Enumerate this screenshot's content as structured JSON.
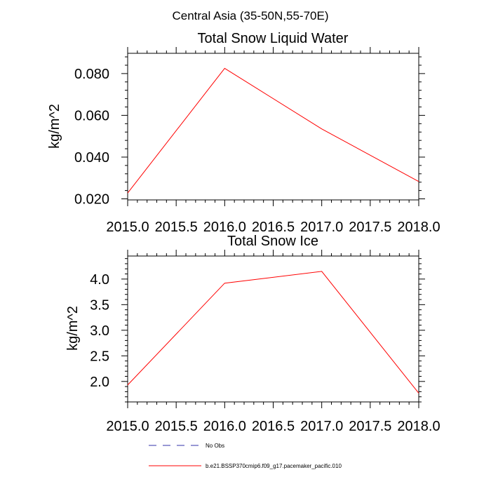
{
  "figure": {
    "suptitle": "Central Asia (35-50N,55-70E)"
  },
  "chart_data": [
    {
      "type": "line",
      "title": "Total Snow Liquid Water",
      "xlabel": "",
      "ylabel": "kg/m^2",
      "xlim": [
        2015.0,
        2018.0
      ],
      "ylim": [
        0.0195,
        0.0897
      ],
      "x_ticks": [
        "2015.0",
        "2015.5",
        "2016.0",
        "2016.5",
        "2017.0",
        "2017.5",
        "2018.0"
      ],
      "y_ticks": [
        {
          "value": 0.02,
          "label": "0.020"
        },
        {
          "value": 0.04,
          "label": "0.040"
        },
        {
          "value": 0.06,
          "label": "0.060"
        },
        {
          "value": 0.08,
          "label": "0.080"
        }
      ],
      "grid": false,
      "series": [
        {
          "name": "b.e21.BSSP370cmip6.f09_g17.pacemaker_pacific.010",
          "color": "#ff0000",
          "x": [
            2015,
            2016,
            2017,
            2018
          ],
          "y": [
            0.0228,
            0.0825,
            0.0535,
            0.0283
          ]
        }
      ]
    },
    {
      "type": "line",
      "title": "Total Snow Ice",
      "xlabel": "",
      "ylabel": "kg/m^2",
      "xlim": [
        2015.0,
        2018.0
      ],
      "ylim": [
        1.6,
        4.45
      ],
      "x_ticks": [
        "2015.0",
        "2015.5",
        "2016.0",
        "2016.5",
        "2017.0",
        "2017.5",
        "2018.0"
      ],
      "y_ticks": [
        {
          "value": 2.0,
          "label": "2.0"
        },
        {
          "value": 2.5,
          "label": "2.5"
        },
        {
          "value": 3.0,
          "label": "3.0"
        },
        {
          "value": 3.5,
          "label": "3.5"
        },
        {
          "value": 4.0,
          "label": "4.0"
        }
      ],
      "grid": false,
      "series": [
        {
          "name": "b.e21.BSSP370cmip6.f09_g17.pacemaker_pacific.010",
          "color": "#ff0000",
          "x": [
            2015,
            2016,
            2017,
            2018
          ],
          "y": [
            1.93,
            3.92,
            4.15,
            1.77
          ]
        }
      ]
    }
  ],
  "legend": {
    "position": "bottom",
    "entries": [
      {
        "label": "No Obs",
        "color": "#3333aa",
        "style": "dashed"
      },
      {
        "label": "b.e21.BSSP370cmip6.f09_g17.pacemaker_pacific.010",
        "color": "#ff0000",
        "style": "solid"
      }
    ]
  }
}
